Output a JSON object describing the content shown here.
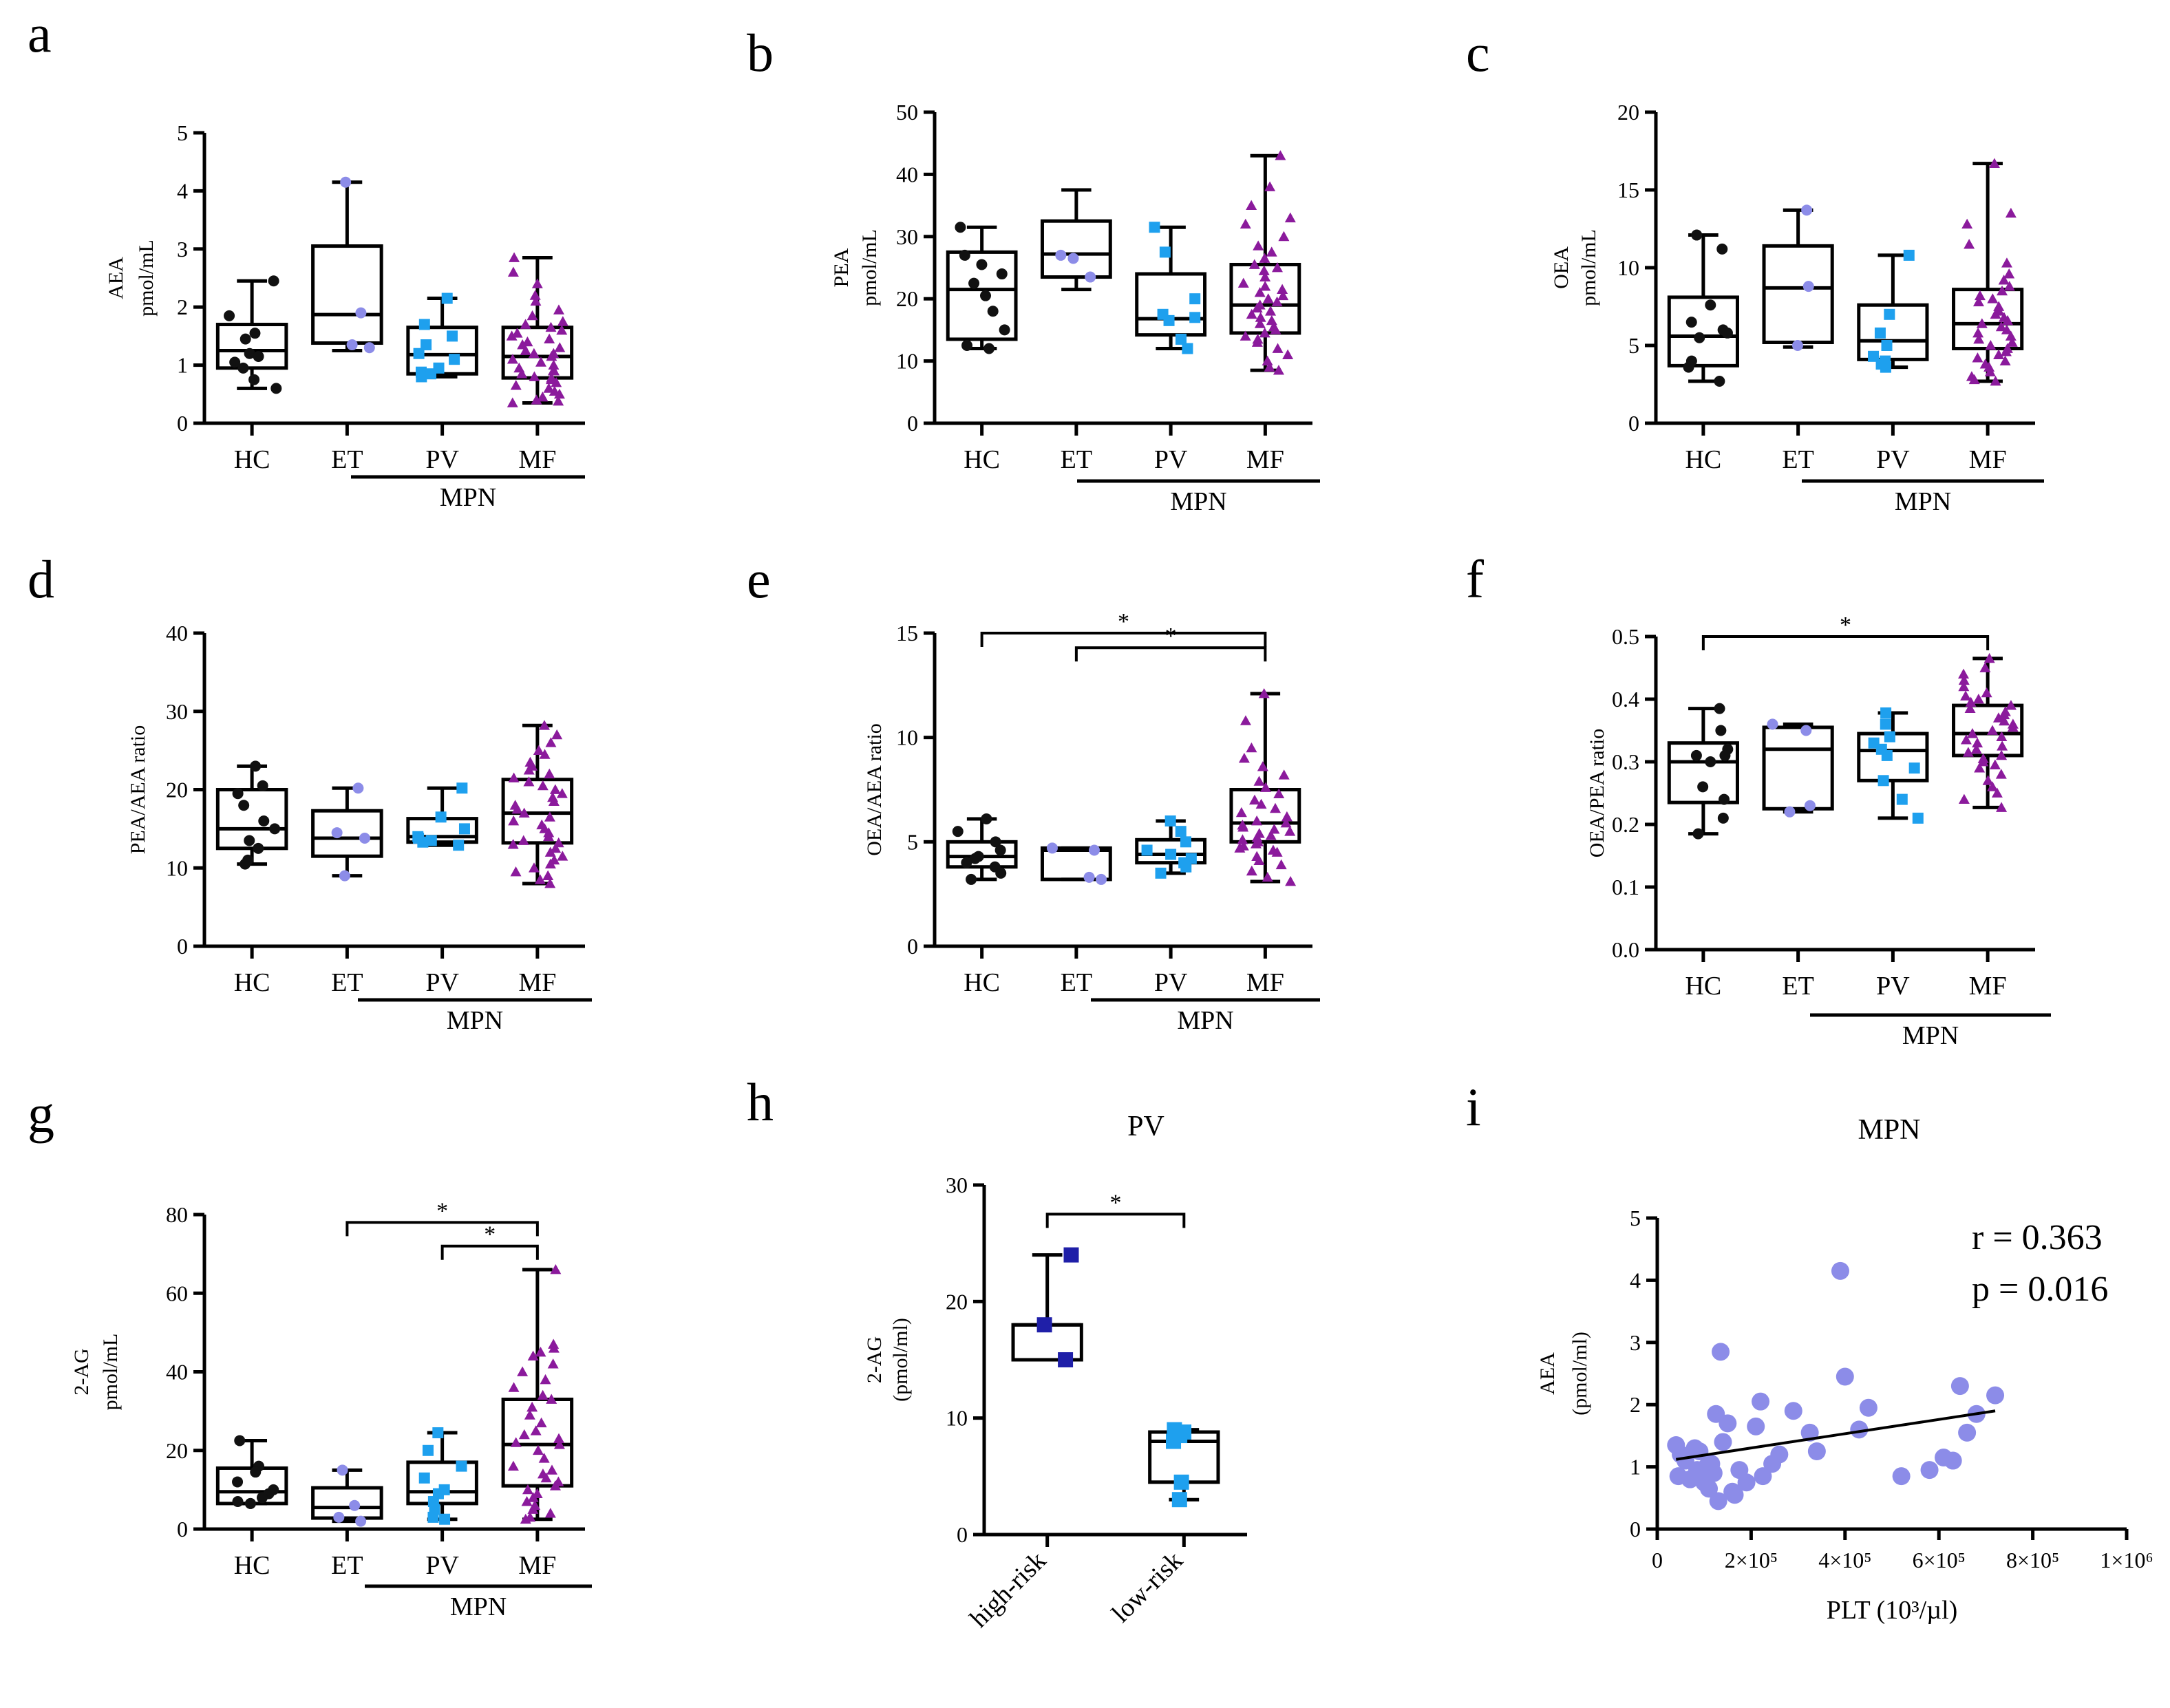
{
  "colors": {
    "HC": "#111111",
    "ET": "#8c8ce8",
    "PV": "#1ea0ee",
    "MF": "#8b1a9c",
    "high_risk": "#1f1fa8",
    "low_risk": "#1ea0ee",
    "scatter": "#8c8ce8"
  },
  "chart_data": [
    {
      "id": "a",
      "letter": "a",
      "type": "box",
      "title": "",
      "ylabel": [
        "AEA",
        "pmol/mL"
      ],
      "ylim": [
        0,
        5
      ],
      "yticks": [
        0,
        1,
        2,
        3,
        4,
        5
      ],
      "ytick_labels": [
        "0",
        "1",
        "2",
        "3",
        "4",
        "5"
      ],
      "categories": [
        "HC",
        "ET",
        "PV",
        "MF"
      ],
      "group_label": "MPN",
      "boxes": [
        {
          "min": 0.6,
          "q1": 0.95,
          "median": 1.25,
          "q3": 1.7,
          "max": 2.45
        },
        {
          "min": 1.25,
          "q1": 1.38,
          "median": 1.87,
          "q3": 3.05,
          "max": 4.15
        },
        {
          "min": 0.8,
          "q1": 0.85,
          "median": 1.18,
          "q3": 1.65,
          "max": 2.15
        },
        {
          "min": 0.35,
          "q1": 0.78,
          "median": 1.15,
          "q3": 1.65,
          "max": 2.85
        }
      ],
      "points": [
        [
          2.45,
          1.85,
          1.55,
          1.45,
          1.2,
          1.15,
          1.05,
          0.95,
          0.75,
          0.6
        ],
        [
          4.15,
          1.9,
          1.35,
          1.3
        ],
        [
          2.15,
          1.7,
          1.5,
          1.35,
          1.2,
          1.1,
          0.95,
          0.88,
          0.85,
          0.8
        ],
        [
          2.85,
          2.6,
          2.4,
          2.2,
          2.1,
          1.95,
          1.85,
          1.75,
          1.7,
          1.65,
          1.6,
          1.55,
          1.5,
          1.45,
          1.4,
          1.35,
          1.3,
          1.25,
          1.2,
          1.2,
          1.15,
          1.1,
          1.05,
          1.0,
          0.95,
          0.9,
          0.9,
          0.85,
          0.8,
          0.78,
          0.75,
          0.7,
          0.65,
          0.6,
          0.55,
          0.5,
          0.45,
          0.4,
          0.38,
          0.35
        ]
      ],
      "brackets": []
    },
    {
      "id": "b",
      "letter": "b",
      "type": "box",
      "title": "",
      "ylabel": [
        "PEA",
        "pmol/mL"
      ],
      "ylim": [
        0,
        50
      ],
      "yticks": [
        0,
        10,
        20,
        30,
        40,
        50
      ],
      "ytick_labels": [
        "0",
        "10",
        "20",
        "30",
        "40",
        "50"
      ],
      "categories": [
        "HC",
        "ET",
        "PV",
        "MF"
      ],
      "group_label": "MPN",
      "boxes": [
        {
          "min": 12,
          "q1": 13.5,
          "median": 21.5,
          "q3": 27.5,
          "max": 31.5
        },
        {
          "min": 21.5,
          "q1": 23.5,
          "median": 27.2,
          "q3": 32.5,
          "max": 37.5
        },
        {
          "min": 12,
          "q1": 14.2,
          "median": 16.8,
          "q3": 24,
          "max": 31.5
        },
        {
          "min": 8.5,
          "q1": 14.5,
          "median": 19,
          "q3": 25.5,
          "max": 43
        }
      ],
      "points": [
        [
          31.5,
          27,
          25.5,
          24,
          22.5,
          20.5,
          18,
          15,
          12.5,
          12
        ],
        [
          27,
          26.5,
          23.5
        ],
        [
          31.5,
          27.5,
          20,
          17.5,
          17,
          16.5,
          13.5,
          12
        ],
        [
          43,
          38,
          35,
          33,
          32,
          30,
          28.5,
          27.5,
          26.5,
          25.5,
          25,
          24.5,
          23.5,
          22.5,
          22,
          21.5,
          21,
          20.5,
          20,
          19.5,
          19,
          18.5,
          18,
          17.5,
          17,
          16.5,
          16,
          15.5,
          15,
          14.5,
          14,
          13.5,
          13,
          12,
          11,
          10,
          9,
          8.5
        ]
      ],
      "brackets": []
    },
    {
      "id": "c",
      "letter": "c",
      "type": "box",
      "title": "",
      "ylabel": [
        "OEA",
        "pmol/mL"
      ],
      "ylim": [
        0,
        20
      ],
      "yticks": [
        0,
        5,
        10,
        15,
        20
      ],
      "ytick_labels": [
        "0",
        "5",
        "10",
        "15",
        "20"
      ],
      "categories": [
        "HC",
        "ET",
        "PV",
        "MF"
      ],
      "group_label": "MPN",
      "boxes": [
        {
          "min": 2.7,
          "q1": 3.7,
          "median": 5.6,
          "q3": 8.1,
          "max": 12.1
        },
        {
          "min": 4.9,
          "q1": 5.2,
          "median": 8.7,
          "q3": 11.4,
          "max": 13.7
        },
        {
          "min": 3.6,
          "q1": 4.1,
          "median": 5.3,
          "q3": 7.6,
          "max": 10.8
        },
        {
          "min": 2.7,
          "q1": 4.8,
          "median": 6.4,
          "q3": 8.6,
          "max": 16.7
        }
      ],
      "points": [
        [
          12.1,
          11.2,
          7.6,
          6.5,
          6.0,
          5.8,
          5.5,
          4.0,
          3.6,
          2.7
        ],
        [
          13.7,
          8.8,
          5.0
        ],
        [
          10.8,
          7.0,
          5.8,
          5.0,
          4.3,
          4.0,
          3.8,
          3.6
        ],
        [
          16.7,
          13.5,
          12.8,
          11.5,
          10.3,
          9.6,
          9.2,
          8.8,
          8.5,
          8.2,
          8.0,
          7.8,
          7.5,
          7.2,
          7.0,
          6.8,
          6.6,
          6.4,
          6.2,
          6.0,
          5.8,
          5.6,
          5.4,
          5.2,
          5.0,
          4.8,
          4.6,
          4.4,
          4.2,
          4.0,
          3.8,
          3.6,
          3.3,
          3.0,
          2.8,
          2.7
        ]
      ],
      "brackets": []
    },
    {
      "id": "d",
      "letter": "d",
      "type": "box",
      "title": "",
      "ylabel": [
        "PEA/AEA ratio"
      ],
      "ylim": [
        0,
        40
      ],
      "yticks": [
        0,
        10,
        20,
        30,
        40
      ],
      "ytick_labels": [
        "0",
        "10",
        "20",
        "30",
        "40"
      ],
      "categories": [
        "HC",
        "ET",
        "PV",
        "MF"
      ],
      "group_label": "MPN",
      "boxes": [
        {
          "min": 10.5,
          "q1": 12.5,
          "median": 15,
          "q3": 20,
          "max": 23
        },
        {
          "min": 9,
          "q1": 11.5,
          "median": 13.8,
          "q3": 17.3,
          "max": 20.2
        },
        {
          "min": 12.9,
          "q1": 13.3,
          "median": 14,
          "q3": 16.3,
          "max": 20.2
        },
        {
          "min": 8,
          "q1": 13.2,
          "median": 17,
          "q3": 21.3,
          "max": 28.2
        }
      ],
      "points": [
        [
          23,
          20.5,
          19.5,
          18,
          16,
          15,
          13.5,
          12.5,
          11,
          10.5
        ],
        [
          20.2,
          14.5,
          13.8,
          9
        ],
        [
          20.2,
          16.5,
          15,
          14,
          13.8,
          13.5,
          13.3,
          12.9
        ],
        [
          28.2,
          27,
          26,
          25,
          24.5,
          23.5,
          23,
          22.5,
          22,
          21.5,
          21,
          20.5,
          20,
          19.5,
          19,
          18.5,
          18,
          17.5,
          17,
          16.5,
          16,
          15.5,
          15,
          14.5,
          14,
          13.5,
          13.2,
          13,
          12.5,
          12,
          11.5,
          11,
          10.5,
          10,
          9.5,
          9,
          8.5,
          8
        ]
      ],
      "brackets": []
    },
    {
      "id": "e",
      "letter": "e",
      "type": "box",
      "title": "",
      "ylabel": [
        "OEA/AEA ratio"
      ],
      "ylim": [
        0,
        15
      ],
      "yticks": [
        0,
        5,
        10,
        15
      ],
      "ytick_labels": [
        "0",
        "5",
        "10",
        "15"
      ],
      "categories": [
        "HC",
        "ET",
        "PV",
        "MF"
      ],
      "group_label": "MPN",
      "boxes": [
        {
          "min": 3.2,
          "q1": 3.8,
          "median": 4.3,
          "q3": 5.0,
          "max": 6.1
        },
        {
          "min": 3.2,
          "q1": 3.2,
          "median": 4.6,
          "q3": 4.7,
          "max": 4.7
        },
        {
          "min": 3.5,
          "q1": 4.0,
          "median": 4.4,
          "q3": 5.1,
          "max": 6.0
        },
        {
          "min": 3.1,
          "q1": 5.0,
          "median": 5.9,
          "q3": 7.5,
          "max": 12.1
        }
      ],
      "points": [
        [
          6.1,
          5.5,
          5.0,
          4.6,
          4.3,
          4.2,
          4.0,
          3.8,
          3.5,
          3.2
        ],
        [
          4.7,
          4.6,
          3.3,
          3.2
        ],
        [
          6.0,
          5.5,
          5.0,
          4.6,
          4.4,
          4.2,
          4.0,
          3.8,
          3.5
        ],
        [
          12.1,
          10.8,
          9.5,
          9.0,
          8.6,
          8.2,
          7.9,
          7.6,
          7.3,
          7.0,
          6.8,
          6.6,
          6.4,
          6.2,
          6.0,
          5.9,
          5.8,
          5.7,
          5.6,
          5.5,
          5.4,
          5.3,
          5.2,
          5.1,
          5.0,
          4.9,
          4.8,
          4.7,
          4.6,
          4.5,
          4.3,
          4.1,
          3.9,
          3.6,
          3.3,
          3.1
        ]
      ],
      "brackets": [
        {
          "from": 0,
          "to": 3,
          "y": 15.0,
          "label": "*"
        },
        {
          "from": 1,
          "to": 3,
          "y": 14.3,
          "label": "*"
        }
      ]
    },
    {
      "id": "f",
      "letter": "f",
      "type": "box",
      "title": "",
      "ylabel": [
        "OEA/PEA ratio"
      ],
      "ylim": [
        0,
        0.5
      ],
      "yticks": [
        0,
        0.1,
        0.2,
        0.3,
        0.4,
        0.5
      ],
      "ytick_labels": [
        "0.0",
        "0.1",
        "0.2",
        "0.3",
        "0.4",
        "0.5"
      ],
      "categories": [
        "HC",
        "ET",
        "PV",
        "MF"
      ],
      "group_label": "MPN",
      "boxes": [
        {
          "min": 0.185,
          "q1": 0.235,
          "median": 0.3,
          "q3": 0.33,
          "max": 0.385
        },
        {
          "min": 0.22,
          "q1": 0.225,
          "median": 0.32,
          "q3": 0.355,
          "max": 0.36
        },
        {
          "min": 0.21,
          "q1": 0.27,
          "median": 0.318,
          "q3": 0.345,
          "max": 0.378
        },
        {
          "min": 0.227,
          "q1": 0.31,
          "median": 0.345,
          "q3": 0.39,
          "max": 0.465
        }
      ],
      "points": [
        [
          0.385,
          0.35,
          0.32,
          0.31,
          0.31,
          0.3,
          0.26,
          0.24,
          0.21,
          0.185
        ],
        [
          0.36,
          0.35,
          0.23,
          0.22
        ],
        [
          0.378,
          0.36,
          0.34,
          0.33,
          0.32,
          0.31,
          0.29,
          0.27,
          0.24,
          0.21
        ],
        [
          0.465,
          0.45,
          0.44,
          0.43,
          0.42,
          0.41,
          0.405,
          0.4,
          0.395,
          0.39,
          0.385,
          0.38,
          0.375,
          0.37,
          0.365,
          0.36,
          0.355,
          0.35,
          0.345,
          0.34,
          0.335,
          0.33,
          0.325,
          0.32,
          0.315,
          0.31,
          0.305,
          0.3,
          0.295,
          0.29,
          0.28,
          0.27,
          0.26,
          0.25,
          0.24,
          0.227
        ]
      ],
      "brackets": [
        {
          "from": 0,
          "to": 3,
          "y": 0.5,
          "label": "*"
        }
      ]
    },
    {
      "id": "g",
      "letter": "g",
      "type": "box",
      "title": "",
      "ylabel": [
        "2-AG",
        "pmol/mL"
      ],
      "ylim": [
        0,
        80
      ],
      "yticks": [
        0,
        20,
        40,
        60,
        80
      ],
      "ytick_labels": [
        "0",
        "20",
        "40",
        "60",
        "80"
      ],
      "categories": [
        "HC",
        "ET",
        "PV",
        "MF"
      ],
      "group_label": "MPN",
      "boxes": [
        {
          "min": 6.5,
          "q1": 6.5,
          "median": 9.5,
          "q3": 15.5,
          "max": 22.5
        },
        {
          "min": 2.0,
          "q1": 2.8,
          "median": 5.5,
          "q3": 10.5,
          "max": 15
        },
        {
          "min": 2.5,
          "q1": 6.5,
          "median": 9.5,
          "q3": 17,
          "max": 24.5
        },
        {
          "min": 2.5,
          "q1": 11,
          "median": 21.5,
          "q3": 33,
          "max": 66
        }
      ],
      "points": [
        [
          22.5,
          16,
          14.5,
          12,
          10,
          9,
          8,
          7,
          6.5,
          6.5
        ],
        [
          15,
          6,
          3,
          2
        ],
        [
          24.5,
          20,
          16,
          13,
          10,
          9,
          7,
          5,
          3,
          2.5
        ],
        [
          66,
          47,
          46,
          45,
          44,
          42,
          40,
          38,
          36,
          34,
          33,
          31,
          29,
          27,
          25,
          24,
          23,
          22,
          21.5,
          20,
          18,
          16,
          15,
          14,
          13,
          12,
          11,
          10,
          9,
          8,
          7,
          6,
          5,
          4,
          3,
          2.5
        ]
      ],
      "brackets": [
        {
          "from": 1,
          "to": 3,
          "y": 78,
          "label": "*"
        },
        {
          "from": 2,
          "to": 3,
          "y": 72,
          "label": "*"
        }
      ]
    },
    {
      "id": "h",
      "letter": "h",
      "type": "box",
      "title": "PV",
      "ylabel": [
        "2-AG",
        "(pmol/ml)"
      ],
      "ylim": [
        0,
        30
      ],
      "yticks": [
        0,
        10,
        20,
        30
      ],
      "ytick_labels": [
        "0",
        "10",
        "20",
        "30"
      ],
      "categories": [
        "high-risk",
        "low-risk"
      ],
      "boxes": [
        {
          "min": 15,
          "q1": 15,
          "median": 18,
          "q3": 18,
          "max": 24
        },
        {
          "min": 3,
          "q1": 4.5,
          "median": 8,
          "q3": 8.8,
          "max": 9
        }
      ],
      "points": [
        [
          24,
          18,
          15
        ],
        [
          9,
          8.8,
          8.5,
          8,
          4.5,
          3
        ]
      ],
      "brackets": [
        {
          "from": 0,
          "to": 1,
          "y": 27.5,
          "label": "*"
        }
      ]
    },
    {
      "id": "i",
      "letter": "i",
      "type": "scatter",
      "title": "MPN",
      "xlabel": "PLT (10³/µl)",
      "ylabel": [
        "AEA",
        "(pmol/ml)"
      ],
      "xlim": [
        0,
        1000000
      ],
      "ylim": [
        0,
        5
      ],
      "xticks": [
        0,
        200000,
        400000,
        600000,
        800000,
        1000000
      ],
      "xtick_labels": [
        "0",
        "2×10⁵",
        "4×10⁵",
        "6×10⁵",
        "8×10⁵",
        "1×10⁶"
      ],
      "yticks": [
        0,
        1,
        2,
        3,
        4,
        5
      ],
      "ytick_labels": [
        "0",
        "1",
        "2",
        "3",
        "4",
        "5"
      ],
      "r_label": "r = 0.363",
      "p_label": "p = 0.016",
      "points": [
        [
          40000,
          1.35
        ],
        [
          45000,
          0.85
        ],
        [
          50000,
          1.2
        ],
        [
          60000,
          1.1
        ],
        [
          70000,
          0.8
        ],
        [
          80000,
          1.3
        ],
        [
          85000,
          0.95
        ],
        [
          90000,
          1.25
        ],
        [
          100000,
          0.75
        ],
        [
          105000,
          1.0
        ],
        [
          110000,
          0.65
        ],
        [
          115000,
          1.05
        ],
        [
          120000,
          0.9
        ],
        [
          125000,
          1.85
        ],
        [
          130000,
          0.45
        ],
        [
          135000,
          2.85
        ],
        [
          140000,
          1.4
        ],
        [
          150000,
          1.7
        ],
        [
          160000,
          0.6
        ],
        [
          165000,
          0.55
        ],
        [
          175000,
          0.95
        ],
        [
          190000,
          0.75
        ],
        [
          210000,
          1.65
        ],
        [
          220000,
          2.05
        ],
        [
          225000,
          0.85
        ],
        [
          245000,
          1.05
        ],
        [
          260000,
          1.2
        ],
        [
          290000,
          1.9
        ],
        [
          325000,
          1.55
        ],
        [
          340000,
          1.25
        ],
        [
          390000,
          4.15
        ],
        [
          400000,
          2.45
        ],
        [
          430000,
          1.6
        ],
        [
          450000,
          1.95
        ],
        [
          520000,
          0.85
        ],
        [
          580000,
          0.95
        ],
        [
          610000,
          1.15
        ],
        [
          630000,
          1.1
        ],
        [
          645000,
          2.3
        ],
        [
          660000,
          1.55
        ],
        [
          680000,
          1.85
        ],
        [
          720000,
          2.15
        ]
      ],
      "regression": {
        "x0": 40000,
        "y0": 1.12,
        "x1": 720000,
        "y1": 1.9
      }
    }
  ]
}
